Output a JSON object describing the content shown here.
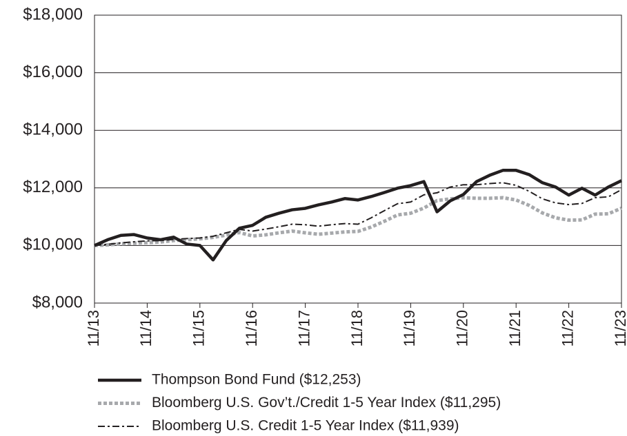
{
  "chart_data": {
    "type": "line",
    "categories": [
      "11/13",
      null,
      null,
      null,
      "11/14",
      null,
      null,
      null,
      "11/15",
      null,
      null,
      null,
      "11/16",
      null,
      null,
      null,
      "11/17",
      null,
      null,
      null,
      "11/18",
      null,
      null,
      null,
      "11/19",
      null,
      null,
      null,
      "11/20",
      null,
      null,
      null,
      "11/21",
      null,
      null,
      null,
      "11/22",
      null,
      null,
      null,
      "11/23"
    ],
    "ylim": [
      8000,
      18000
    ],
    "yticks": [
      {
        "value": 8000,
        "label": "$8,000"
      },
      {
        "value": 10000,
        "label": "$10,000"
      },
      {
        "value": 12000,
        "label": "$12,000"
      },
      {
        "value": 14000,
        "label": "$14,000"
      },
      {
        "value": 16000,
        "label": "$16,000"
      },
      {
        "value": 18000,
        "label": "$18,000"
      }
    ],
    "grid": true,
    "legend": "bottom",
    "series": [
      {
        "name": "Thompson Bond Fund ($12,253)",
        "color": "#231f20",
        "style": "solid",
        "values": [
          10000,
          10200,
          10350,
          10380,
          10260,
          10200,
          10290,
          10050,
          10000,
          9500,
          10170,
          10600,
          10700,
          10980,
          11120,
          11240,
          11290,
          11410,
          11510,
          11630,
          11580,
          11700,
          11840,
          11990,
          12080,
          12220,
          11170,
          11550,
          11770,
          12220,
          12440,
          12610,
          12610,
          12460,
          12180,
          12030,
          11750,
          11990,
          11750,
          12030,
          12253
        ]
      },
      {
        "name": "Bloomberg U.S. Gov’t./Credit 1-5 Year Index ($11,295)",
        "color": "#a7a9ac",
        "style": "dotted",
        "values": [
          10000,
          10020,
          10060,
          10080,
          10100,
          10120,
          10170,
          10200,
          10230,
          10280,
          10360,
          10450,
          10330,
          10370,
          10440,
          10500,
          10440,
          10390,
          10430,
          10470,
          10490,
          10640,
          10840,
          11060,
          11120,
          11300,
          11560,
          11620,
          11660,
          11640,
          11640,
          11660,
          11580,
          11390,
          11130,
          10960,
          10880,
          10890,
          11090,
          11100,
          11295
        ]
      },
      {
        "name": "Bloomberg U.S. Credit 1-5 Year Index ($11,939)",
        "color": "#231f20",
        "style": "dashdot",
        "values": [
          10000,
          10040,
          10090,
          10130,
          10160,
          10170,
          10210,
          10240,
          10260,
          10320,
          10440,
          10560,
          10500,
          10570,
          10650,
          10740,
          10720,
          10670,
          10720,
          10760,
          10740,
          10960,
          11210,
          11450,
          11510,
          11760,
          11830,
          12030,
          12110,
          12110,
          12150,
          12180,
          12090,
          11880,
          11620,
          11480,
          11420,
          11460,
          11660,
          11690,
          11939
        ]
      }
    ]
  }
}
